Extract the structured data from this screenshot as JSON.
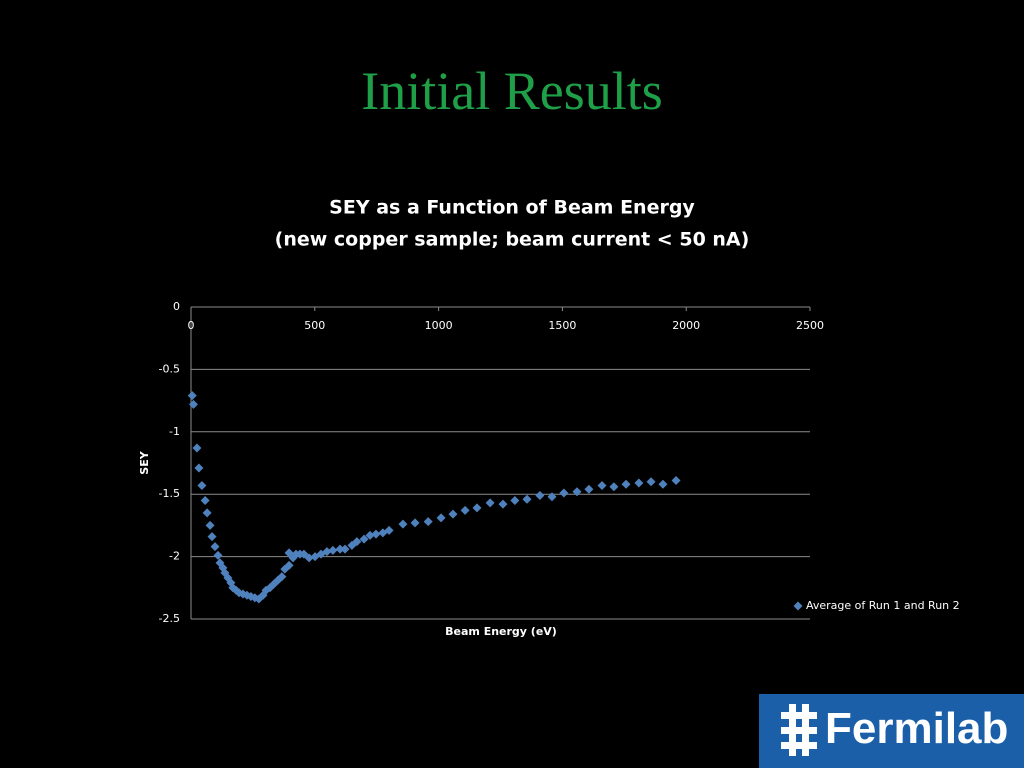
{
  "slide_title": "Initial Results",
  "logo_text": "Fermilab",
  "chart_data": {
    "type": "scatter",
    "title": "SEY as a Function of Beam Energy",
    "subtitle": "(new copper sample; beam current < 50 nA)",
    "x_label": "Beam Energy (eV)",
    "y_label": "SEY",
    "xlim": [
      0,
      2500
    ],
    "xticks": [
      0,
      500,
      1000,
      1500,
      2000,
      2500
    ],
    "ylim": [
      -2.5,
      0
    ],
    "yticks": [
      -2.5,
      -2,
      -1.5,
      -1,
      -0.5,
      0
    ],
    "grid": true,
    "legend": "right",
    "series": [
      {
        "name": "Average of Run 1 and Run 2",
        "color": "#4f81bd",
        "x": [
          5,
          10,
          24,
          32,
          44,
          57,
          65,
          77,
          85,
          97,
          109,
          117,
          129,
          137,
          149,
          161,
          169,
          182,
          194,
          210,
          226,
          242,
          258,
          274,
          291,
          303,
          319,
          335,
          351,
          367,
          379,
          396,
          396,
          412,
          424,
          440,
          456,
          477,
          501,
          525,
          549,
          573,
          602,
          622,
          650,
          670,
          699,
          723,
          747,
          775,
          800,
          856,
          905,
          958,
          1010,
          1058,
          1107,
          1155,
          1208,
          1260,
          1308,
          1357,
          1409,
          1458,
          1506,
          1559,
          1607,
          1660,
          1708,
          1757,
          1809,
          1858,
          1906,
          1959
        ],
        "values": [
          -0.71,
          -0.78,
          -1.13,
          -1.29,
          -1.43,
          -1.55,
          -1.65,
          -1.75,
          -1.84,
          -1.92,
          -1.99,
          -2.05,
          -2.09,
          -2.13,
          -2.17,
          -2.21,
          -2.25,
          -2.27,
          -2.29,
          -2.3,
          -2.31,
          -2.32,
          -2.33,
          -2.34,
          -2.31,
          -2.27,
          -2.25,
          -2.22,
          -2.19,
          -2.16,
          -2.1,
          -2.07,
          -1.97,
          -2.01,
          -1.98,
          -1.98,
          -1.98,
          -2.01,
          -2.0,
          -1.98,
          -1.96,
          -1.95,
          -1.94,
          -1.94,
          -1.91,
          -1.88,
          -1.86,
          -1.83,
          -1.82,
          -1.81,
          -1.79,
          -1.74,
          -1.73,
          -1.72,
          -1.69,
          -1.66,
          -1.63,
          -1.61,
          -1.57,
          -1.58,
          -1.55,
          -1.54,
          -1.51,
          -1.52,
          -1.49,
          -1.48,
          -1.46,
          -1.43,
          -1.44,
          -1.42,
          -1.41,
          -1.4,
          -1.42,
          -1.39
        ]
      }
    ]
  }
}
